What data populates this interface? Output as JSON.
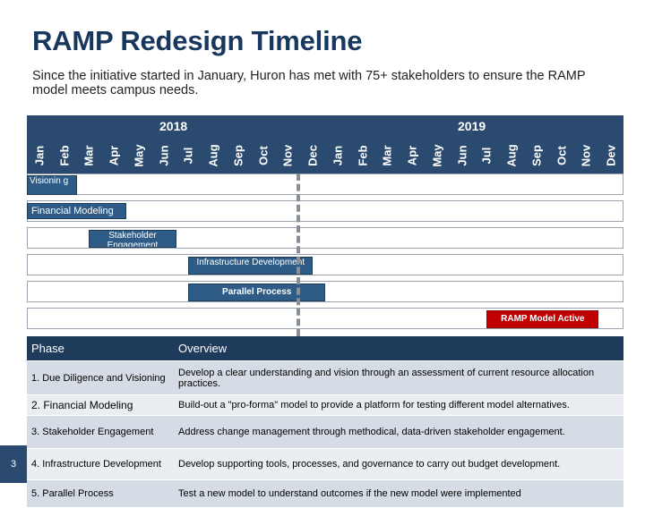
{
  "title": "RAMP Redesign Timeline",
  "subtitle": "Since the initiative started in January, Huron has met with 75+ stakeholders to ensure the RAMP model meets campus needs.",
  "timeline": {
    "years": [
      "2018",
      "2019"
    ],
    "months_2018": [
      "Jan",
      "Feb",
      "Mar",
      "Apr",
      "May",
      "Jun",
      "Jul",
      "Aug",
      "Sep",
      "Oct",
      "Nov",
      "Dec"
    ],
    "months_2019": [
      "Jan",
      "Feb",
      "Mar",
      "Apr",
      "May",
      "Jun",
      "Jul",
      "Aug",
      "Sep",
      "Oct",
      "Nov",
      "Dev"
    ],
    "bars": [
      {
        "label": "Visionin g",
        "start_month": 0,
        "end_month": 2
      },
      {
        "label": "Financial Modeling",
        "start_month": 0,
        "end_month": 4
      },
      {
        "label": "Stakeholder Engagement",
        "start_month": 2.5,
        "end_month": 6
      },
      {
        "label": "Infrastructure Development",
        "start_month": 6.5,
        "end_month": 11.5
      },
      {
        "label": "Parallel Process",
        "start_month": 6.5,
        "end_month": 12
      },
      {
        "label": "RAMP Model Active",
        "start_month": 18.5,
        "end_month": 23
      }
    ],
    "colors": {
      "header": "#2A4B6F",
      "bar": "#2E5C86",
      "active": "#C00000"
    }
  },
  "table": {
    "headers": [
      "Phase",
      "Overview"
    ],
    "rows": [
      {
        "phase": "1. Due Diligence and Visioning",
        "overview": "Develop a clear understanding and vision through an assessment of  current resource allocation practices."
      },
      {
        "phase": "2. Financial Modeling",
        "overview": "Build-out a \"pro-forma\" model to provide a platform for testing different model alternatives."
      },
      {
        "phase": "3. Stakeholder Engagement",
        "overview": "Address change management through methodical, data-driven stakeholder engagement."
      },
      {
        "phase": "4. Infrastructure Development",
        "overview": "Develop supporting tools, processes, and governance to carry out budget development."
      },
      {
        "phase": "5. Parallel Process",
        "overview": "Test a new model to understand outcomes if the new model were implemented"
      }
    ]
  },
  "page_number": "3"
}
